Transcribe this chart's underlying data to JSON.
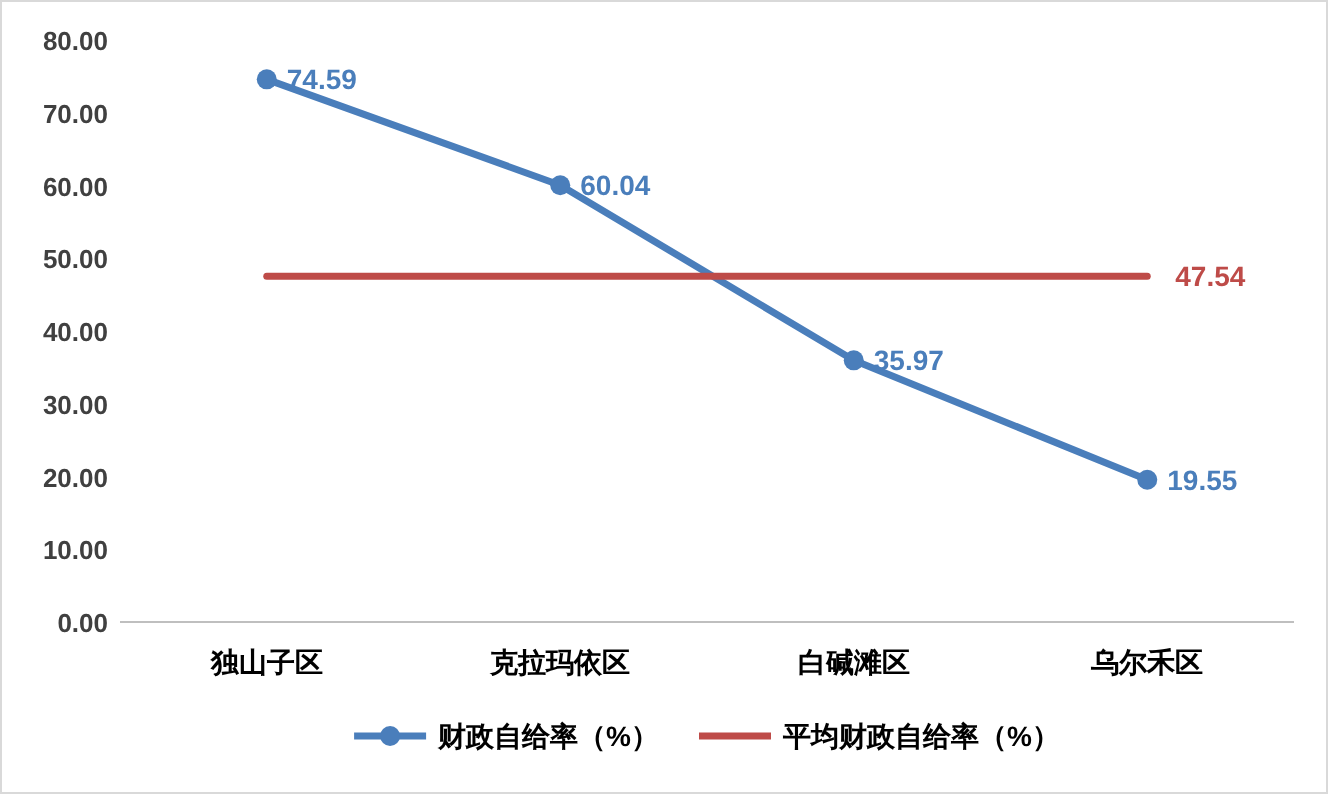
{
  "chart_data": {
    "type": "line",
    "categories": [
      "独山子区",
      "克拉玛依区",
      "白碱滩区",
      "乌尔禾区"
    ],
    "series": [
      {
        "name": "财政自给率（%）",
        "color": "#4a7ebb",
        "marker": "circle",
        "values": [
          74.59,
          60.04,
          35.97,
          19.55
        ],
        "value_labels": [
          "74.59",
          "60.04",
          "35.97",
          "19.55"
        ]
      },
      {
        "name": "平均财政自给率（%）",
        "color": "#be4b48",
        "marker": "none",
        "values": [
          47.54,
          47.54,
          47.54,
          47.54
        ],
        "value_labels": [
          null,
          null,
          null,
          "47.54"
        ]
      }
    ],
    "ylim": [
      0,
      80
    ],
    "yticks": [
      {
        "value": 0,
        "label": "0.00"
      },
      {
        "value": 10,
        "label": "10.00"
      },
      {
        "value": 20,
        "label": "20.00"
      },
      {
        "value": 30,
        "label": "30.00"
      },
      {
        "value": 40,
        "label": "40.00"
      },
      {
        "value": 50,
        "label": "50.00"
      },
      {
        "value": 60,
        "label": "60.00"
      },
      {
        "value": 70,
        "label": "70.00"
      },
      {
        "value": 80,
        "label": "80.00"
      }
    ],
    "grid": false,
    "legend": "bottom",
    "line_style": "solid"
  }
}
